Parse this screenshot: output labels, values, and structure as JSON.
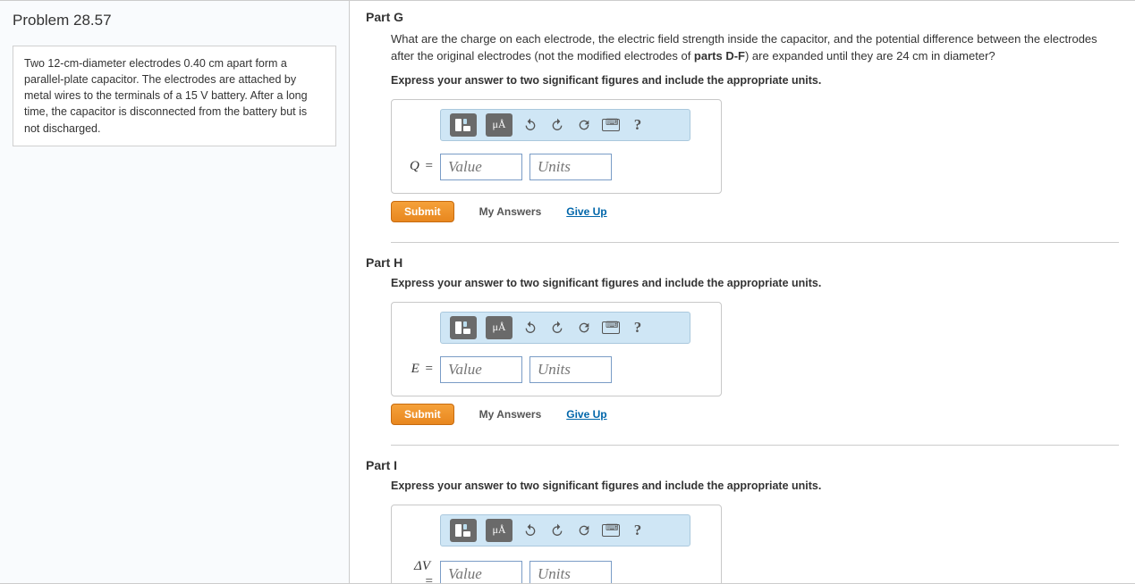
{
  "problem": {
    "title": "Problem 28.57",
    "description_html": "Two 12-cm-diameter electrodes 0.40 cm apart form a parallel-plate capacitor. The electrodes are attached by metal wires to the terminals of a 15 V battery. After a long time, the capacitor is disconnected from the battery but is not discharged."
  },
  "toolbar": {
    "mua_label": "μÅ",
    "help_label": "?"
  },
  "actions": {
    "submit": "Submit",
    "my_answers": "My Answers",
    "give_up": "Give Up"
  },
  "placeholders": {
    "value": "Value",
    "units": "Units"
  },
  "parts": {
    "g": {
      "title": "Part G",
      "question_html": "What are the charge on each electrode, the electric field strength inside the capacitor, and the potential difference between the electrodes after the original electrodes (not the modified electrodes of <b>parts D-F</b>) are expanded until they are 24 cm in diameter?",
      "instruction": "Express your answer to two significant figures and include the appropriate units.",
      "var_label": "Q",
      "value": "",
      "units": ""
    },
    "h": {
      "title": "Part H",
      "instruction": "Express your answer to two significant figures and include the appropriate units.",
      "var_label": "E",
      "value": "",
      "units": ""
    },
    "i": {
      "title": "Part I",
      "instruction": "Express your answer to two significant figures and include the appropriate units.",
      "var_label": "ΔV",
      "value": "",
      "units": ""
    }
  },
  "colors": {
    "panel_bg": "#f9fbfd",
    "toolbar_bg": "#cfe6f5",
    "submit_bg": "#e8871f",
    "link": "#0066aa",
    "border": "#cccccc",
    "input_border": "#7a9cc6"
  }
}
